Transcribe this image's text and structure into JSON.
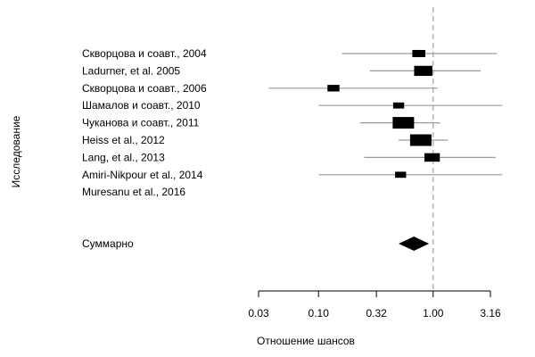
{
  "chart_data": {
    "type": "forest",
    "ylabel": "Исследование",
    "xlabel": "Отношение шансов",
    "x_scale": "log",
    "xlim": [
      0.03,
      4.0
    ],
    "x_ticks": [
      0.03,
      0.1,
      0.32,
      1.0,
      3.16
    ],
    "x_tick_labels": [
      "0.03",
      "0.10",
      "0.32",
      "1.00",
      "3.16"
    ],
    "reference_line": 1.0,
    "studies": [
      {
        "label": "Скворцова и соавт., 2004",
        "or": 0.75,
        "ci_low": 0.16,
        "ci_high": 3.6
      },
      {
        "label": "Ladurner, et al. 2005",
        "or": 0.82,
        "ci_low": 0.28,
        "ci_high": 2.6
      },
      {
        "label": "Скворцова и соавт., 2006",
        "or": 0.135,
        "ci_low": 0.037,
        "ci_high": 1.1
      },
      {
        "label": "Шамалов и соавт., 2010",
        "or": 0.5,
        "ci_low": 0.1,
        "ci_high": 4.0
      },
      {
        "label": "Чуканова и соавт., 2011",
        "or": 0.55,
        "ci_low": 0.23,
        "ci_high": 1.15
      },
      {
        "label": "Heiss et al., 2012",
        "or": 0.78,
        "ci_low": 0.5,
        "ci_high": 1.35
      },
      {
        "label": "Lang, et al., 2013",
        "or": 0.98,
        "ci_low": 0.25,
        "ci_high": 3.5
      },
      {
        "label": "Amiri-Nikpour et al., 2014",
        "or": 0.52,
        "ci_low": 0.1,
        "ci_high": 4.0
      },
      {
        "label": "Muresanu et al., 2016",
        "or": null,
        "ci_low": null,
        "ci_high": null
      }
    ],
    "summary": {
      "label": "Суммарно",
      "or": 0.68,
      "ci_low": 0.5,
      "ci_high": 0.92
    },
    "colors": {
      "ci_line": "#9a9a9a",
      "marker": "#000000",
      "ref_line": "#b5b5b5",
      "axis": "#000000"
    }
  }
}
